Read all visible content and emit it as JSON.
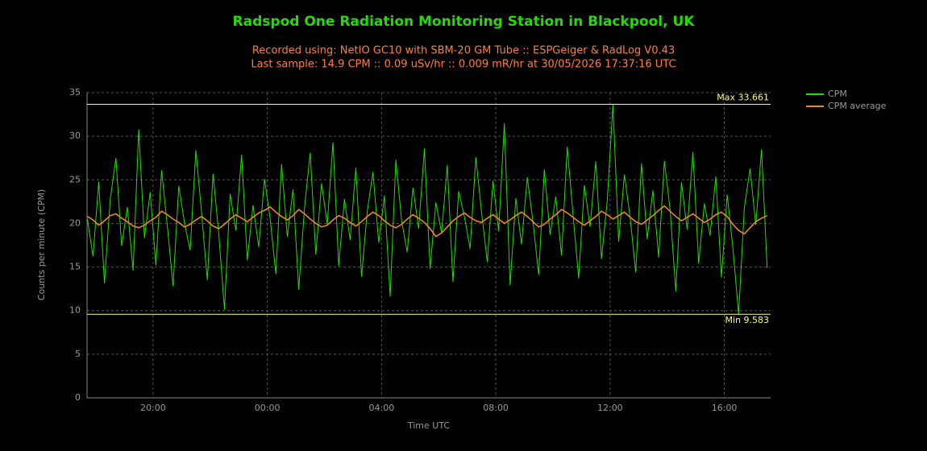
{
  "chart_data": {
    "type": "line",
    "title": "Radspod One Radiation Monitoring Station in Blackpool, UK",
    "subtitle": [
      "Recorded using: NetIO GC10 with SBM-20 GM Tube :: ESPGeiger & RadLog V0.43",
      "Last sample: 14.9 CPM :: 0.09 uSv/hr :: 0.009 mR/hr at 30/05/2026 17:37:16 UTC"
    ],
    "y_label": "Counts per minute (CPM)",
    "x_label": "Time UTC",
    "xlim": [
      17.69,
      41.62
    ],
    "xticks": [
      {
        "value": 20,
        "label": "20:00"
      },
      {
        "value": 24,
        "label": "00:00"
      },
      {
        "value": 28,
        "label": "04:00"
      },
      {
        "value": 32,
        "label": "08:00"
      },
      {
        "value": 36,
        "label": "12:00"
      },
      {
        "value": 40,
        "label": "16:00"
      }
    ],
    "ylim": [
      0,
      35
    ],
    "yticks": [
      0,
      5,
      10,
      15,
      20,
      25,
      30,
      35
    ],
    "grid": true,
    "hlines": [
      {
        "value": 33.661,
        "label": "Max 33.661"
      },
      {
        "value": 9.583,
        "label": "Min 9.583"
      }
    ],
    "hline_color": "#ffff66",
    "x": [
      17.7,
      17.9,
      18.1,
      18.3,
      18.5,
      18.7,
      18.9,
      19.1,
      19.3,
      19.5,
      19.7,
      19.9,
      20.1,
      20.3,
      20.5,
      20.7,
      20.9,
      21.1,
      21.3,
      21.5,
      21.7,
      21.9,
      22.1,
      22.3,
      22.5,
      22.7,
      22.9,
      23.1,
      23.3,
      23.5,
      23.7,
      23.9,
      24.1,
      24.3,
      24.5,
      24.7,
      24.9,
      25.1,
      25.3,
      25.5,
      25.7,
      25.9,
      26.1,
      26.3,
      26.5,
      26.7,
      26.9,
      27.1,
      27.3,
      27.5,
      27.7,
      27.9,
      28.1,
      28.3,
      28.5,
      28.7,
      28.9,
      29.1,
      29.3,
      29.5,
      29.7,
      29.9,
      30.1,
      30.3,
      30.5,
      30.7,
      30.9,
      31.1,
      31.3,
      31.5,
      31.7,
      31.9,
      32.1,
      32.3,
      32.5,
      32.7,
      32.9,
      33.1,
      33.3,
      33.5,
      33.7,
      33.9,
      34.1,
      34.3,
      34.5,
      34.7,
      34.9,
      35.1,
      35.3,
      35.5,
      35.7,
      35.9,
      36.1,
      36.3,
      36.5,
      36.7,
      36.9,
      37.1,
      37.3,
      37.5,
      37.7,
      37.9,
      38.1,
      38.3,
      38.5,
      38.7,
      38.9,
      39.1,
      39.3,
      39.5,
      39.7,
      39.9,
      40.1,
      40.3,
      40.5,
      40.7,
      40.9,
      41.1,
      41.3,
      41.5
    ],
    "series": [
      {
        "name": "CPM",
        "color": "#22dd00",
        "values": [
          20.5,
          16.2,
          24.8,
          13.1,
          22.7,
          27.5,
          17.4,
          21.9,
          14.6,
          30.8,
          18.3,
          23.6,
          15.2,
          26.1,
          19.7,
          12.8,
          24.3,
          20.1,
          16.9,
          28.4,
          21.2,
          13.5,
          25.7,
          18.8,
          10.1,
          23.4,
          19.2,
          27.9,
          15.8,
          22.1,
          17.3,
          25.1,
          20.6,
          14.2,
          26.8,
          18.5,
          23.9,
          12.4,
          21.7,
          28.1,
          16.4,
          24.6,
          19.9,
          29.3,
          15.1,
          22.8,
          18.1,
          26.4,
          13.9,
          21.4,
          25.9,
          17.8,
          23.2,
          11.6,
          27.3,
          20.3,
          16.7,
          24.1,
          19.4,
          28.6,
          14.8,
          22.4,
          18.9,
          26.7,
          13.3,
          23.7,
          20.8,
          17.1,
          27.6,
          21.3,
          15.6,
          24.9,
          19.1,
          31.5,
          12.9,
          22.9,
          17.6,
          25.3,
          20.2,
          14.1,
          26.2,
          18.7,
          23.1,
          16.3,
          28.8,
          21.1,
          13.7,
          24.4,
          19.6,
          27.1,
          15.9,
          22.6,
          33.661,
          17.9,
          25.6,
          20.7,
          14.4,
          26.9,
          18.2,
          23.8,
          16.1,
          27.2,
          21.6,
          12.2,
          24.7,
          19.3,
          28.2,
          15.4,
          22.3,
          18.6,
          25.4,
          13.8,
          23.3,
          17.2,
          9.583,
          21.8,
          26.3,
          19.8,
          28.5,
          14.9
        ]
      },
      {
        "name": "CPM average",
        "color": "#ee8822",
        "values": [
          20.8,
          20.4,
          19.8,
          20.3,
          20.9,
          21.1,
          20.6,
          20.2,
          19.7,
          19.5,
          19.8,
          20.3,
          20.7,
          21.4,
          21.0,
          20.5,
          20.1,
          19.6,
          19.9,
          20.4,
          20.8,
          20.3,
          19.7,
          19.4,
          19.9,
          20.5,
          21.0,
          20.6,
          20.2,
          20.7,
          21.2,
          21.5,
          21.9,
          21.3,
          20.8,
          20.4,
          20.9,
          21.6,
          21.1,
          20.5,
          20.0,
          19.6,
          19.8,
          20.4,
          20.9,
          20.6,
          20.1,
          19.7,
          20.2,
          20.8,
          21.3,
          20.9,
          20.3,
          19.8,
          19.5,
          19.9,
          20.5,
          21.0,
          20.6,
          20.1,
          19.4,
          18.5,
          18.9,
          19.6,
          20.3,
          20.8,
          21.2,
          20.7,
          20.3,
          20.1,
          20.6,
          21.0,
          20.5,
          20.0,
          20.4,
          20.9,
          21.3,
          20.8,
          20.2,
          19.6,
          19.9,
          20.5,
          21.0,
          21.6,
          21.2,
          20.7,
          20.2,
          19.8,
          20.3,
          20.8,
          21.4,
          21.0,
          20.5,
          20.9,
          21.3,
          20.7,
          20.2,
          19.9,
          20.4,
          20.9,
          21.5,
          22.0,
          21.4,
          20.8,
          20.3,
          20.7,
          21.1,
          20.6,
          20.1,
          20.5,
          21.0,
          21.3,
          20.8,
          19.9,
          19.2,
          18.8,
          19.5,
          20.2,
          20.6,
          20.9
        ]
      }
    ]
  }
}
